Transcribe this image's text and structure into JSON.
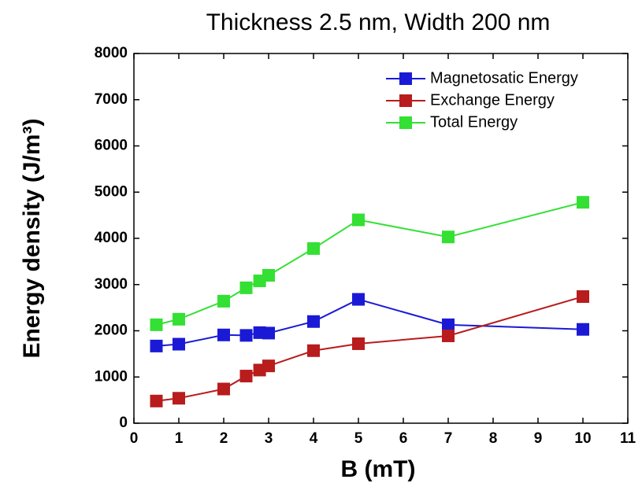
{
  "chart_data": {
    "type": "line",
    "title": "Thickness 2.5 nm, Width 200 nm",
    "x_label": "B (mT)",
    "y_label": "Energy density (J/m³)",
    "xlim": [
      0,
      11
    ],
    "xticks": [
      0,
      1,
      2,
      3,
      4,
      5,
      6,
      7,
      8,
      9,
      10,
      11
    ],
    "ylim": [
      0,
      8000
    ],
    "yticks": [
      0,
      1000,
      2000,
      3000,
      4000,
      5000,
      6000,
      7000,
      8000
    ],
    "legend": "upper right",
    "series": [
      {
        "name": "Magnetosatic Energy",
        "color": "#1a1ad6",
        "x": [
          0.5,
          1,
          2,
          2.5,
          2.8,
          3,
          4,
          5,
          7,
          10
        ],
        "values": [
          1670,
          1710,
          1910,
          1900,
          1960,
          1950,
          2200,
          2680,
          2130,
          2030
        ]
      },
      {
        "name": "Exchange Energy",
        "color": "#b81c1c",
        "x": [
          0.5,
          1,
          2,
          2.5,
          2.8,
          3,
          4,
          5,
          7,
          10
        ],
        "values": [
          480,
          540,
          740,
          1020,
          1150,
          1240,
          1570,
          1720,
          1890,
          2740
        ]
      },
      {
        "name": "Total Energy",
        "color": "#33e033",
        "x": [
          0.5,
          1,
          2,
          2.5,
          2.8,
          3,
          4,
          5,
          7,
          10
        ],
        "values": [
          2130,
          2250,
          2640,
          2930,
          3080,
          3200,
          3780,
          4400,
          4030,
          4780
        ]
      }
    ]
  }
}
